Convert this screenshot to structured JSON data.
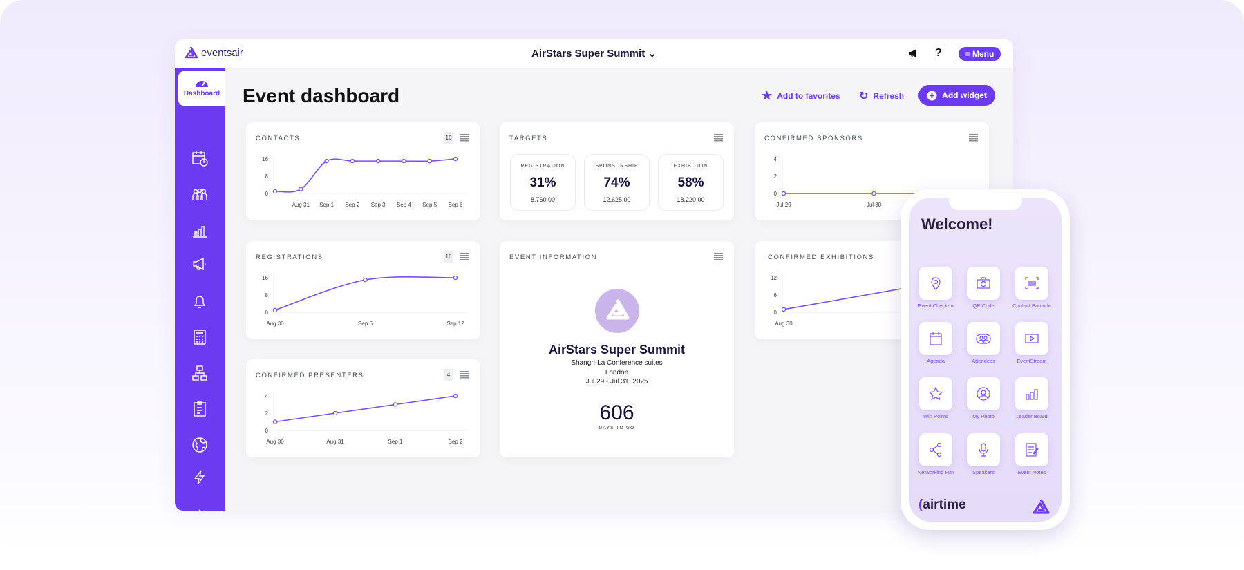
{
  "header": {
    "logo_text": "eventsair",
    "event_title": "AirStars Super Summit",
    "menu_label": "Menu",
    "icons": [
      "megaphone-icon",
      "help-icon",
      "menu-icon"
    ],
    "help_label": "?"
  },
  "sidebar": {
    "active_label": "Dashboard",
    "items": [
      "dashboard",
      "schedule",
      "attendees",
      "reports",
      "marketing",
      "notifications",
      "calculator",
      "hierarchy",
      "forms",
      "globe",
      "automation",
      "settings"
    ]
  },
  "page": {
    "title": "Event dashboard",
    "add_favorites": "Add to favorites",
    "refresh": "Refresh",
    "add_widget": "Add widget"
  },
  "colors": {
    "accent": "#6c3af0",
    "line": "#7b4ef0"
  },
  "cards": {
    "contacts": {
      "title": "CONTACTS",
      "badge": "16"
    },
    "targets": {
      "title": "TARGETS",
      "items": [
        {
          "label": "REGISTRATION",
          "percent": "31%",
          "value": "8,760.00"
        },
        {
          "label": "SPONSORSHIP",
          "percent": "74%",
          "value": "12,625.00"
        },
        {
          "label": "EXHIBITION",
          "percent": "58%",
          "value": "18,220.00"
        }
      ]
    },
    "sponsors": {
      "title": "CONFIRMED SPONSORS"
    },
    "registrations": {
      "title": "REGISTRATIONS",
      "badge": "16"
    },
    "event_info": {
      "title": "EVENT INFORMATION",
      "name": "AirStars Super Summit",
      "venue": "Shangri-La Conference suites",
      "city": "London",
      "dates": "Jul 29 - Jul 31, 2025",
      "days": "606",
      "days_label": "DAYS TO GO"
    },
    "exhibitions": {
      "title": "CONFIRMED EXHIBITIONS"
    },
    "presenters": {
      "title": "CONFIRMED PRESENTERS",
      "badge": "4"
    }
  },
  "chart_data": [
    {
      "id": "contacts",
      "type": "line",
      "smooth": true,
      "categories": [
        "",
        "Aug 31",
        "Sep 1",
        "Sep 2",
        "Sep 3",
        "Sep 4",
        "Sep 5",
        "Sep 6"
      ],
      "values": [
        1,
        2,
        15,
        15,
        15,
        15,
        15,
        16
      ],
      "yticks": [
        0,
        8,
        16
      ],
      "ylim": [
        0,
        16
      ]
    },
    {
      "id": "sponsors",
      "type": "line",
      "categories": [
        "Jul 29",
        "Jul 30",
        ""
      ],
      "values": [
        0,
        0,
        0
      ],
      "yticks": [
        0,
        2,
        4
      ],
      "ylim": [
        0,
        4
      ]
    },
    {
      "id": "registrations",
      "type": "line",
      "smooth": true,
      "categories": [
        "Aug 30",
        "Sep 6",
        "Sep 12"
      ],
      "values": [
        1,
        15,
        16
      ],
      "yticks": [
        0,
        8,
        16
      ],
      "ylim": [
        0,
        16
      ]
    },
    {
      "id": "exhibitions",
      "type": "line",
      "categories": [
        "Aug 30",
        ""
      ],
      "values": [
        1,
        12
      ],
      "yticks": [
        0,
        6,
        12
      ],
      "ylim": [
        0,
        12
      ]
    },
    {
      "id": "presenters",
      "type": "line",
      "categories": [
        "Aug 30",
        "Aug 31",
        "Sep 1",
        "Sep 2"
      ],
      "values": [
        1,
        2,
        3,
        4
      ],
      "yticks": [
        0,
        2,
        4
      ],
      "ylim": [
        0,
        4
      ]
    }
  ],
  "phone": {
    "welcome": "Welcome!",
    "brand": "airtime",
    "tiles": [
      {
        "label": "Event Check-In",
        "icon": "location-pin-icon"
      },
      {
        "label": "QR Code",
        "icon": "camera-icon"
      },
      {
        "label": "Contact Barcode",
        "icon": "barcode-icon"
      },
      {
        "label": "Agenda",
        "icon": "calendar-icon"
      },
      {
        "label": "Attendees",
        "icon": "people-icon"
      },
      {
        "label": "EventStream",
        "icon": "play-icon"
      },
      {
        "label": "Win Points",
        "icon": "star-icon"
      },
      {
        "label": "My Photo",
        "icon": "user-circle-icon"
      },
      {
        "label": "Leader Board",
        "icon": "bar-chart-icon"
      },
      {
        "label": "Networking Fun",
        "icon": "share-icon"
      },
      {
        "label": "Speakers",
        "icon": "microphone-icon"
      },
      {
        "label": "Event Notes",
        "icon": "notes-icon"
      }
    ]
  }
}
